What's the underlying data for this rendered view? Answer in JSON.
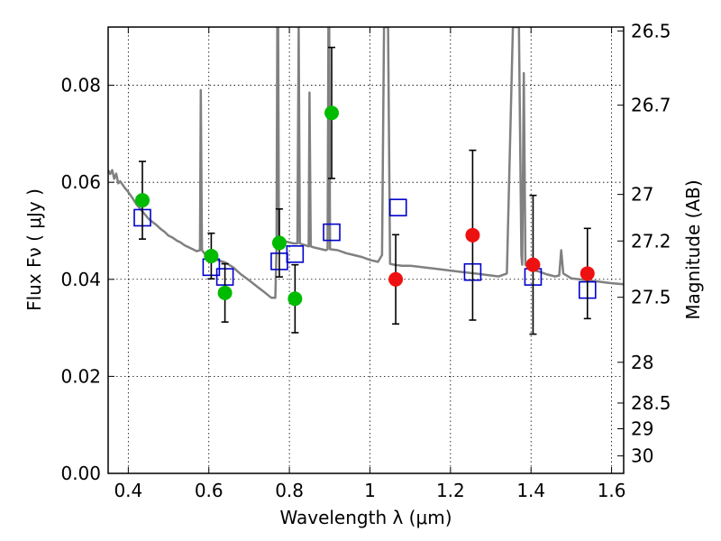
{
  "chart_data": {
    "type": "scatter",
    "xlabel": "Wavelength  λ (μm)",
    "ylabel": "Flux  Fν  ( μJy )",
    "ylabel_right": "Magnitude (AB)",
    "xlim": [
      0.35,
      1.63
    ],
    "ylim": [
      0.0,
      0.092
    ],
    "grid": true,
    "x_ticks": [
      0.4,
      0.6,
      0.8,
      1.0,
      1.2,
      1.4,
      1.6
    ],
    "x_tick_labels": [
      "0.4",
      "0.6",
      "0.8",
      "1",
      "1.2",
      "1.4",
      "1.6"
    ],
    "y_ticks": [
      0.0,
      0.02,
      0.04,
      0.06,
      0.08
    ],
    "y_tick_labels": [
      "0.00",
      "0.02",
      "0.04",
      "0.06",
      "0.08"
    ],
    "right_ticks": [
      {
        "flux": 0.0912,
        "label": "26.5"
      },
      {
        "flux": 0.0759,
        "label": "26.7"
      },
      {
        "flux": 0.0575,
        "label": "27"
      },
      {
        "flux": 0.0479,
        "label": "27.2"
      },
      {
        "flux": 0.0363,
        "label": "27.5"
      },
      {
        "flux": 0.0229,
        "label": "28"
      },
      {
        "flux": 0.0145,
        "label": "28.5"
      },
      {
        "flux": 0.0092,
        "label": "29"
      },
      {
        "flux": 0.0036,
        "label": "30"
      }
    ],
    "series": [
      {
        "marker": "circle",
        "color": "#00bb00",
        "points": [
          {
            "x": 0.435,
            "y": 0.0563,
            "err": 0.008
          },
          {
            "x": 0.606,
            "y": 0.0448,
            "err": 0.0047
          },
          {
            "x": 0.64,
            "y": 0.0372,
            "err": 0.006
          },
          {
            "x": 0.775,
            "y": 0.0475,
            "err": 0.007
          },
          {
            "x": 0.814,
            "y": 0.036,
            "err": 0.007
          },
          {
            "x": 0.905,
            "y": 0.0743,
            "err": 0.0135
          }
        ]
      },
      {
        "marker": "circle",
        "color": "#ee1111",
        "points": [
          {
            "x": 1.064,
            "y": 0.04,
            "err": 0.0092
          },
          {
            "x": 1.255,
            "y": 0.0491,
            "err": 0.0175
          },
          {
            "x": 1.405,
            "y": 0.043,
            "err": 0.0143
          },
          {
            "x": 1.54,
            "y": 0.0412,
            "err": 0.0093
          }
        ]
      },
      {
        "marker": "open-square",
        "color": "#0000cc",
        "points": [
          {
            "x": 0.435,
            "y": 0.0527
          },
          {
            "x": 0.606,
            "y": 0.0425
          },
          {
            "x": 0.64,
            "y": 0.0405
          },
          {
            "x": 0.775,
            "y": 0.0437
          },
          {
            "x": 0.814,
            "y": 0.0452
          },
          {
            "x": 0.905,
            "y": 0.0497
          },
          {
            "x": 1.07,
            "y": 0.0548
          },
          {
            "x": 1.255,
            "y": 0.0415
          },
          {
            "x": 1.405,
            "y": 0.0405
          },
          {
            "x": 1.54,
            "y": 0.0378
          }
        ]
      }
    ],
    "model_spectrum": {
      "color": "#808080",
      "points": [
        [
          0.35,
          0.0625
        ],
        [
          0.355,
          0.0617
        ],
        [
          0.36,
          0.0625
        ],
        [
          0.365,
          0.0607
        ],
        [
          0.37,
          0.0618
        ],
        [
          0.375,
          0.0598
        ],
        [
          0.38,
          0.0602
        ],
        [
          0.39,
          0.059
        ],
        [
          0.4,
          0.058
        ],
        [
          0.41,
          0.0568
        ],
        [
          0.42,
          0.0555
        ],
        [
          0.43,
          0.0545
        ],
        [
          0.44,
          0.0535
        ],
        [
          0.45,
          0.0525
        ],
        [
          0.46,
          0.0518
        ],
        [
          0.47,
          0.0512
        ],
        [
          0.48,
          0.0504
        ],
        [
          0.49,
          0.0498
        ],
        [
          0.5,
          0.049
        ],
        [
          0.51,
          0.0486
        ],
        [
          0.52,
          0.048
        ],
        [
          0.53,
          0.0476
        ],
        [
          0.54,
          0.047
        ],
        [
          0.55,
          0.0466
        ],
        [
          0.56,
          0.0462
        ],
        [
          0.57,
          0.0458
        ],
        [
          0.578,
          0.046
        ],
        [
          0.58,
          0.079
        ],
        [
          0.583,
          0.046
        ],
        [
          0.59,
          0.0452
        ],
        [
          0.6,
          0.0446
        ],
        [
          0.62,
          0.044
        ],
        [
          0.64,
          0.0435
        ],
        [
          0.66,
          0.0425
        ],
        [
          0.68,
          0.041
        ],
        [
          0.7,
          0.0398
        ],
        [
          0.72,
          0.0385
        ],
        [
          0.74,
          0.0372
        ],
        [
          0.755,
          0.0362
        ],
        [
          0.765,
          0.0362
        ],
        [
          0.768,
          0.046
        ],
        [
          0.77,
          0.092
        ],
        [
          0.772,
          0.092
        ],
        [
          0.774,
          0.0468
        ],
        [
          0.78,
          0.0478
        ],
        [
          0.79,
          0.0478
        ],
        [
          0.8,
          0.0476
        ],
        [
          0.81,
          0.0474
        ],
        [
          0.82,
          0.0474
        ],
        [
          0.823,
          0.092
        ],
        [
          0.826,
          0.0474
        ],
        [
          0.84,
          0.047
        ],
        [
          0.848,
          0.0468
        ],
        [
          0.85,
          0.0785
        ],
        [
          0.853,
          0.0468
        ],
        [
          0.86,
          0.0466
        ],
        [
          0.88,
          0.0462
        ],
        [
          0.89,
          0.046
        ],
        [
          0.895,
          0.0462
        ],
        [
          0.897,
          0.092
        ],
        [
          0.899,
          0.092
        ],
        [
          0.901,
          0.0462
        ],
        [
          0.92,
          0.046
        ],
        [
          0.94,
          0.0454
        ],
        [
          0.96,
          0.045
        ],
        [
          0.98,
          0.0446
        ],
        [
          1.0,
          0.044
        ],
        [
          1.02,
          0.0436
        ],
        [
          1.03,
          0.045
        ],
        [
          1.035,
          0.092
        ],
        [
          1.045,
          0.092
        ],
        [
          1.05,
          0.0432
        ],
        [
          1.06,
          0.043
        ],
        [
          1.08,
          0.0428
        ],
        [
          1.1,
          0.0428
        ],
        [
          1.12,
          0.0426
        ],
        [
          1.14,
          0.0424
        ],
        [
          1.16,
          0.0422
        ],
        [
          1.18,
          0.042
        ],
        [
          1.2,
          0.0418
        ],
        [
          1.22,
          0.0416
        ],
        [
          1.24,
          0.0414
        ],
        [
          1.26,
          0.0412
        ],
        [
          1.28,
          0.041
        ],
        [
          1.3,
          0.0408
        ],
        [
          1.32,
          0.0406
        ],
        [
          1.34,
          0.0412
        ],
        [
          1.355,
          0.092
        ],
        [
          1.37,
          0.092
        ],
        [
          1.376,
          0.045
        ],
        [
          1.378,
          0.043
        ],
        [
          1.382,
          0.0825
        ],
        [
          1.386,
          0.043
        ],
        [
          1.4,
          0.042
        ],
        [
          1.42,
          0.0416
        ],
        [
          1.44,
          0.041
        ],
        [
          1.46,
          0.0406
        ],
        [
          1.47,
          0.0408
        ],
        [
          1.475,
          0.046
        ],
        [
          1.48,
          0.0412
        ],
        [
          1.5,
          0.0402
        ],
        [
          1.52,
          0.04
        ],
        [
          1.54,
          0.0398
        ],
        [
          1.56,
          0.0396
        ],
        [
          1.58,
          0.0394
        ],
        [
          1.6,
          0.0392
        ],
        [
          1.63,
          0.039
        ]
      ]
    }
  }
}
